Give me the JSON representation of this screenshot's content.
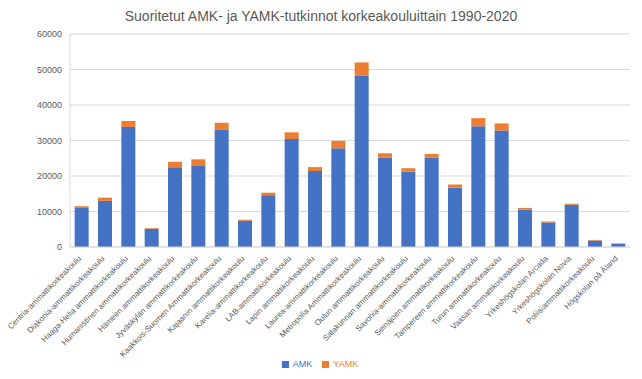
{
  "chart_data": {
    "type": "bar",
    "title": "Suoritetut AMK- ja YAMK-tutkinnot korkeakouluittain 1990-2020",
    "categories": [
      "Centria-ammattikorkeakoulu",
      "Diakonia-ammattikorkeakoulu",
      "Haaga-Helia ammattikorkeakoulu",
      "Humanistinen ammattikorkeakoulu",
      "Hämeen ammattikorkeakoulu",
      "Jyväskylän ammattikorkeakoulu",
      "Kaakkois-Suomen Ammattikorkeakoulu",
      "Kajaanin ammattikorkeakoulu",
      "Karelia-ammattikorkeakoulu",
      "LAB-ammattikorkeakoulu",
      "Lapin ammattikorkeakoulu",
      "Laurea-ammattikorkeakoulu",
      "Metropolia Ammattikorkeakoulu",
      "Oulun ammattikorkeakoulu",
      "Satakunnan ammattikorkeakoulu",
      "Savonia-ammattikorkeakoulu",
      "Seinäjoen ammattikorkeakoulu",
      "Tampereen ammattikorkeakoulu",
      "Turun ammattikorkeakoulu",
      "Vaasan ammattikorkeakoulu",
      "Yrkeshögskolan Arcada",
      "Yrkeshögskolan Novia",
      "Poliisiammattikorkeakoulu",
      "Högskolan på Åland"
    ],
    "series": [
      {
        "name": "AMK",
        "color": "#4472c4",
        "values": [
          11000,
          13000,
          33800,
          5100,
          22500,
          22800,
          33000,
          7400,
          14600,
          30400,
          21400,
          27800,
          48200,
          25200,
          21300,
          25200,
          16700,
          34000,
          32800,
          10500,
          6900,
          11900,
          1800,
          950
        ]
      },
      {
        "name": "YAMK",
        "color": "#ed7d31",
        "values": [
          500,
          900,
          1700,
          200,
          1500,
          1900,
          2000,
          300,
          700,
          1900,
          1100,
          2100,
          3800,
          1200,
          900,
          1000,
          900,
          2300,
          2000,
          500,
          300,
          300,
          200,
          50
        ]
      }
    ],
    "ylim": [
      0,
      60000
    ],
    "yticks": [
      0,
      10000,
      20000,
      30000,
      40000,
      50000,
      60000
    ],
    "grid": true,
    "stacked": true,
    "legend": "bottom"
  }
}
